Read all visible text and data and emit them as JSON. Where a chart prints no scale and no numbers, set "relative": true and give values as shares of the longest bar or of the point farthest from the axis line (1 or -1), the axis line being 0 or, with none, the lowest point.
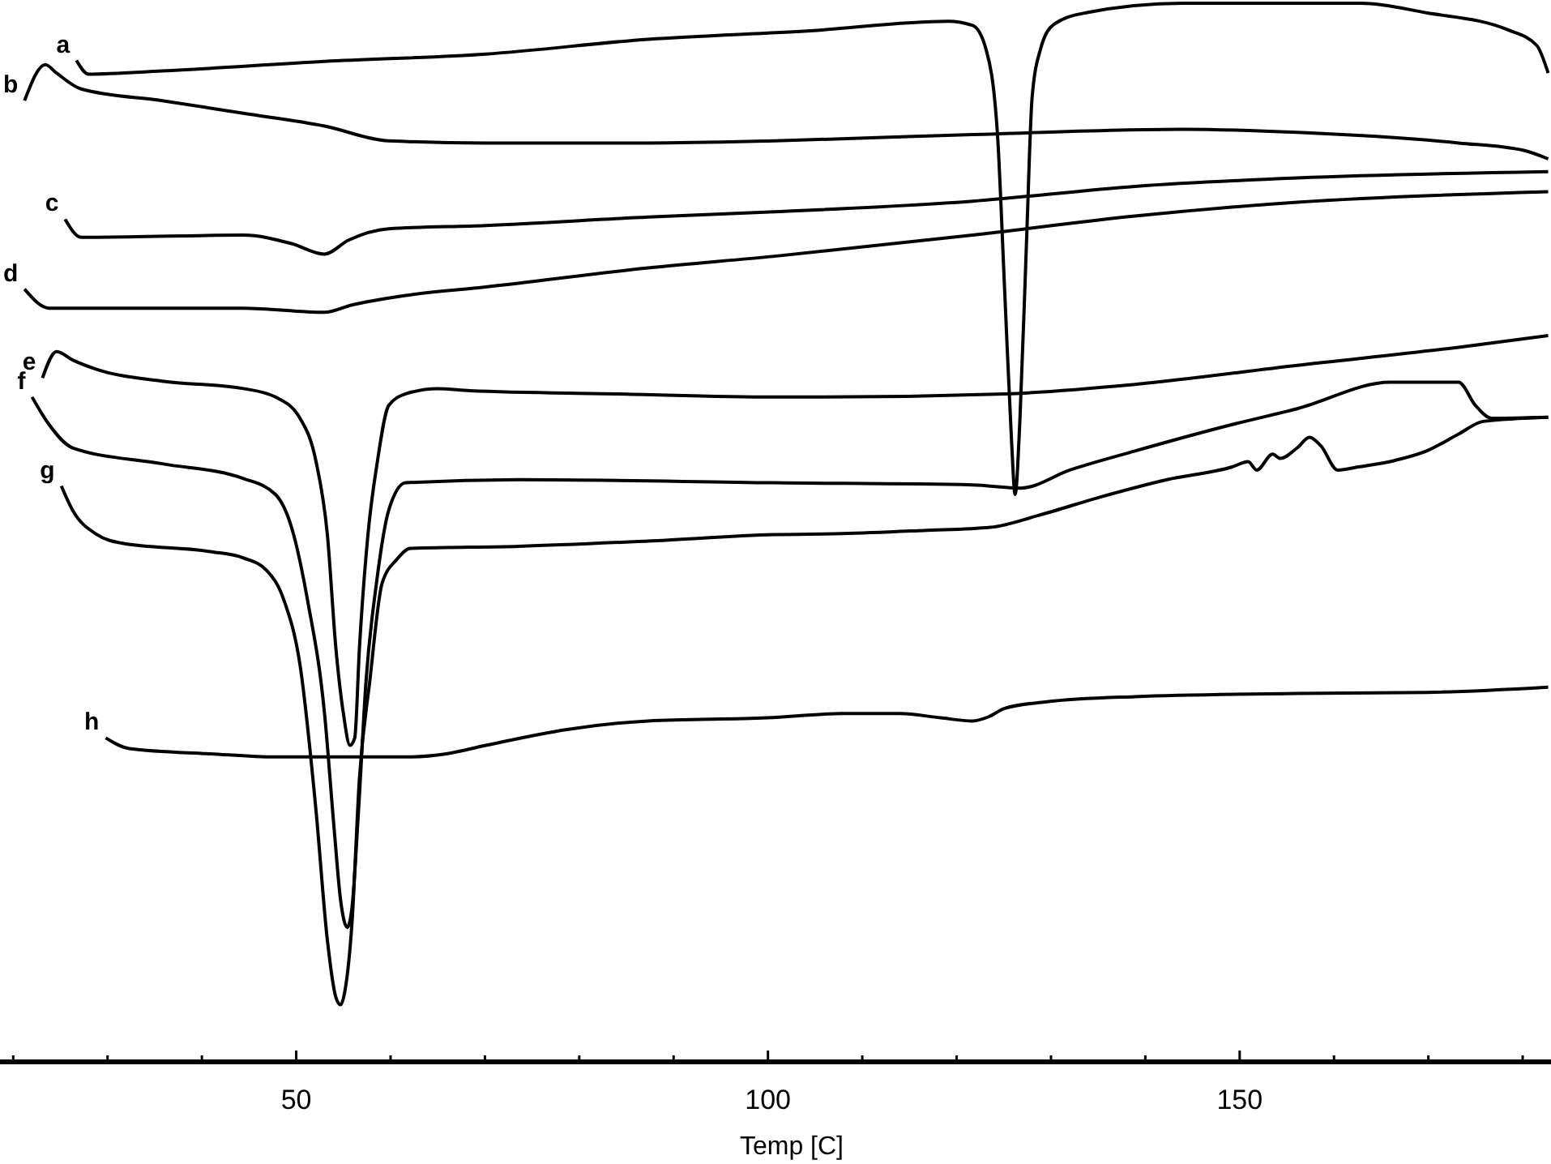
{
  "chart_data": {
    "type": "line",
    "relative": true,
    "xlabel": "Temp [C]",
    "xlim": [
      18.6,
      183
    ],
    "xticks": [
      {
        "value": 20,
        "label": null
      },
      {
        "value": 30,
        "label": null
      },
      {
        "value": 40,
        "label": null
      },
      50,
      {
        "value": 60,
        "label": null
      },
      {
        "value": 70,
        "label": null
      },
      {
        "value": 80,
        "label": null
      },
      {
        "value": 90,
        "label": null
      },
      100,
      {
        "value": 110,
        "label": null
      },
      {
        "value": 120,
        "label": null
      },
      {
        "value": 130,
        "label": null
      },
      {
        "value": 140,
        "label": null
      },
      150,
      {
        "value": 160,
        "label": null
      },
      {
        "value": 170,
        "label": null
      },
      {
        "value": 180,
        "label": null
      }
    ],
    "series": [
      {
        "name": "a",
        "color": "#000000",
        "x": [
          26.7,
          28.0,
          35.8,
          53.0,
          70.1,
          87.3,
          104.5,
          119.1,
          121.7,
          123.1,
          124.3,
          125.1,
          125.8,
          126.2,
          126.7,
          127.4,
          128.0,
          128.9,
          130.3,
          133.7,
          144.0,
          162.9,
          169.8,
          178.4,
          181.5,
          182.7
        ],
        "values": [
          0.946,
          0.933,
          0.936,
          0.945,
          0.952,
          0.966,
          0.974,
          0.983,
          0.979,
          0.957,
          0.88,
          0.727,
          0.59,
          0.536,
          0.605,
          0.773,
          0.911,
          0.957,
          0.98,
          0.991,
          1,
          1,
          0.991,
          0.975,
          0.96,
          0.934
        ]
      },
      {
        "name": "b",
        "color": "#000000",
        "x": [
          21.2,
          23.4,
          24.6,
          27.2,
          35.8,
          44.4,
          53.0,
          59.8,
          70.1,
          87.3,
          100.7,
          121.7,
          144.0,
          156.1,
          173.2,
          180.1,
          182.7
        ],
        "values": [
          0.908,
          0.942,
          0.934,
          0.919,
          0.908,
          0.896,
          0.884,
          0.87,
          0.868,
          0.868,
          0.87,
          0.876,
          0.881,
          0.878,
          0.868,
          0.861,
          0.853
        ]
      },
      {
        "name": "c",
        "color": "#000000",
        "x": [
          25.5,
          27.2,
          28.9,
          44.4,
          49.5,
          53.0,
          55.5,
          59.8,
          70.1,
          87.3,
          100.7,
          121.7,
          138.9,
          156.1,
          182.7
        ],
        "values": [
          0.796,
          0.779,
          0.779,
          0.781,
          0.773,
          0.763,
          0.776,
          0.787,
          0.79,
          0.798,
          0.803,
          0.813,
          0.827,
          0.835,
          0.841
        ]
      },
      {
        "name": "d",
        "color": "#000000",
        "x": [
          21.2,
          23.8,
          44.4,
          53.0,
          55.9,
          61.6,
          70.1,
          87.3,
          100.7,
          121.7,
          138.9,
          156.1,
          182.7
        ],
        "values": [
          0.73,
          0.712,
          0.712,
          0.708,
          0.715,
          0.724,
          0.732,
          0.75,
          0.761,
          0.781,
          0.799,
          0.812,
          0.822
        ]
      },
      {
        "name": "e",
        "color": "#000000",
        "x": [
          23.1,
          24.6,
          26.3,
          28.9,
          35.8,
          44.4,
          47.8,
          50.4,
          52.1,
          53.3,
          54.2,
          55.0,
          55.7,
          56.2,
          56.7,
          57.6,
          58.6,
          59.8,
          61.6,
          65.0,
          68.4,
          83.9,
          100.7,
          104.5,
          125.1,
          138.9,
          156.1,
          173.2,
          182.7
        ],
        "values": [
          0.646,
          0.671,
          0.663,
          0.654,
          0.643,
          0.636,
          0.628,
          0.608,
          0.567,
          0.498,
          0.391,
          0.329,
          0.299,
          0.306,
          0.391,
          0.498,
          0.567,
          0.62,
          0.631,
          0.636,
          0.634,
          0.631,
          0.628,
          0.628,
          0.631,
          0.64,
          0.658,
          0.675,
          0.686
        ]
      },
      {
        "name": "f",
        "color": "#000000",
        "x": [
          22.0,
          23.8,
          26.3,
          35.8,
          44.4,
          47.8,
          49.5,
          51.2,
          53.0,
          54.0,
          54.7,
          55.4,
          55.9,
          56.6,
          57.4,
          58.5,
          59.8,
          61.6,
          73.6,
          100.7,
          121.7,
          126.8,
          132.0,
          138.9,
          149.2,
          156.1,
          166.0,
          173.2,
          175.0,
          176.7,
          182.7
        ],
        "values": [
          0.628,
          0.602,
          0.58,
          0.565,
          0.551,
          0.536,
          0.505,
          0.436,
          0.329,
          0.222,
          0.153,
          0.127,
          0.145,
          0.237,
          0.36,
          0.452,
          0.521,
          0.547,
          0.55,
          0.547,
          0.545,
          0.542,
          0.559,
          0.577,
          0.602,
          0.617,
          0.642,
          0.642,
          0.62,
          0.608,
          0.609
        ]
      },
      {
        "name": "g",
        "color": "#000000",
        "x": [
          25.1,
          26.3,
          28.9,
          31.5,
          40.9,
          44.4,
          46.9,
          48.7,
          50.4,
          52.1,
          53.3,
          54.2,
          54.7,
          55.2,
          55.9,
          56.7,
          57.8,
          59.1,
          60.7,
          62.1,
          73.6,
          87.3,
          100.7,
          107.9,
          116.5,
          123.6,
          128.6,
          135.4,
          142.3,
          149.2,
          150.9,
          151.8,
          153.5,
          154.3,
          156.1,
          157.4,
          158.6,
          160.4,
          162.6,
          166.4,
          169.8,
          173.2,
          175.8,
          182.7
        ],
        "values": [
          0.544,
          0.521,
          0.498,
          0.49,
          0.482,
          0.476,
          0.464,
          0.436,
          0.375,
          0.237,
          0.115,
          0.061,
          0.054,
          0.069,
          0.13,
          0.268,
          0.36,
          0.452,
          0.475,
          0.485,
          0.487,
          0.492,
          0.498,
          0.499,
          0.502,
          0.505,
          0.516,
          0.534,
          0.55,
          0.562,
          0.567,
          0.559,
          0.574,
          0.57,
          0.58,
          0.59,
          0.582,
          0.559,
          0.562,
          0.568,
          0.577,
          0.593,
          0.605,
          0.609
        ]
      },
      {
        "name": "h",
        "color": "#000000",
        "x": [
          29.8,
          32.3,
          40.9,
          47.8,
          61.6,
          65.9,
          70.1,
          78.7,
          87.3,
          99.9,
          107.9,
          114.0,
          118.3,
          121.7,
          123.4,
          125.1,
          129.4,
          138.9,
          156.1,
          169.8,
          182.7
        ],
        "values": [
          0.306,
          0.296,
          0.291,
          0.288,
          0.288,
          0.291,
          0.299,
          0.314,
          0.322,
          0.325,
          0.329,
          0.329,
          0.325,
          0.322,
          0.326,
          0.334,
          0.34,
          0.345,
          0.348,
          0.349,
          0.354
        ]
      }
    ]
  }
}
